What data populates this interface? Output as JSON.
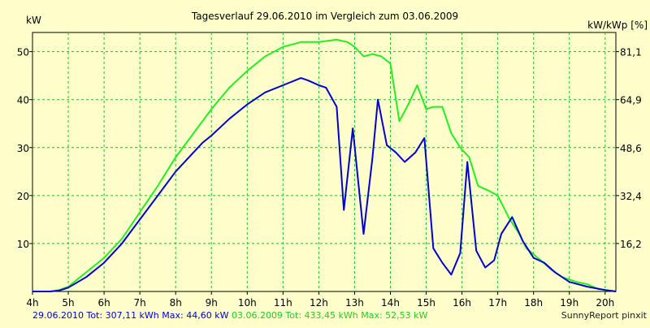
{
  "chart_data": {
    "type": "line",
    "title": "Tagesverlauf 29.06.2010 im Vergleich zum 03.06.2009",
    "ylabel_left": "kW",
    "ylabel_right": "kW/kWp [%]",
    "xlim": [
      4,
      20.3
    ],
    "ylim": [
      0,
      54
    ],
    "x_ticks": [
      {
        "v": 4,
        "label": "4h"
      },
      {
        "v": 5,
        "label": "5h"
      },
      {
        "v": 6,
        "label": "6h"
      },
      {
        "v": 7,
        "label": "7h"
      },
      {
        "v": 8,
        "label": "8h"
      },
      {
        "v": 9,
        "label": "9h"
      },
      {
        "v": 10,
        "label": "10h"
      },
      {
        "v": 11,
        "label": "11h"
      },
      {
        "v": 12,
        "label": "12h"
      },
      {
        "v": 13,
        "label": "13h"
      },
      {
        "v": 14,
        "label": "14h"
      },
      {
        "v": 15,
        "label": "15h"
      },
      {
        "v": 16,
        "label": "16h"
      },
      {
        "v": 17,
        "label": "17h"
      },
      {
        "v": 18,
        "label": "18h"
      },
      {
        "v": 19,
        "label": "19h"
      },
      {
        "v": 20,
        "label": "20h"
      }
    ],
    "y_ticks_left": [
      {
        "v": 10,
        "label": "10"
      },
      {
        "v": 20,
        "label": "20"
      },
      {
        "v": 30,
        "label": "30"
      },
      {
        "v": 40,
        "label": "40"
      },
      {
        "v": 50,
        "label": "50"
      }
    ],
    "y_ticks_right": [
      {
        "v": 10,
        "label": "16,2"
      },
      {
        "v": 20,
        "label": "32,4"
      },
      {
        "v": 30,
        "label": "48,6"
      },
      {
        "v": 40,
        "label": "64,9"
      },
      {
        "v": 50,
        "label": "81,1"
      }
    ],
    "grid": true,
    "series": [
      {
        "name": "29.06.2010",
        "color": "#0000cc",
        "points": [
          [
            4.0,
            0
          ],
          [
            4.5,
            0
          ],
          [
            4.75,
            0.2
          ],
          [
            5.0,
            0.8
          ],
          [
            5.5,
            3
          ],
          [
            6.0,
            6
          ],
          [
            6.5,
            10
          ],
          [
            7.0,
            15
          ],
          [
            7.5,
            20
          ],
          [
            8.0,
            25
          ],
          [
            8.5,
            29
          ],
          [
            8.75,
            31
          ],
          [
            9.0,
            32.5
          ],
          [
            9.5,
            36
          ],
          [
            10.0,
            39
          ],
          [
            10.5,
            41.5
          ],
          [
            11.0,
            43
          ],
          [
            11.5,
            44.5
          ],
          [
            11.7,
            44
          ],
          [
            12.0,
            43
          ],
          [
            12.2,
            42.5
          ],
          [
            12.5,
            38.5
          ],
          [
            12.7,
            17
          ],
          [
            12.95,
            34
          ],
          [
            13.25,
            12
          ],
          [
            13.5,
            28
          ],
          [
            13.65,
            40
          ],
          [
            13.9,
            30.5
          ],
          [
            14.15,
            29
          ],
          [
            14.4,
            27
          ],
          [
            14.7,
            29
          ],
          [
            14.95,
            32
          ],
          [
            15.2,
            9
          ],
          [
            15.45,
            6
          ],
          [
            15.7,
            3.5
          ],
          [
            15.95,
            8
          ],
          [
            16.15,
            27
          ],
          [
            16.4,
            8.5
          ],
          [
            16.65,
            5
          ],
          [
            16.9,
            6.5
          ],
          [
            17.1,
            12
          ],
          [
            17.4,
            15.5
          ],
          [
            17.7,
            10.5
          ],
          [
            18.0,
            7
          ],
          [
            18.3,
            6
          ],
          [
            18.6,
            4
          ],
          [
            19.0,
            2
          ],
          [
            19.5,
            1
          ],
          [
            20.0,
            0.3
          ],
          [
            20.3,
            0
          ]
        ]
      },
      {
        "name": "03.06.2009",
        "color": "#22ee22",
        "points": [
          [
            4.0,
            0
          ],
          [
            4.5,
            0
          ],
          [
            4.75,
            0.3
          ],
          [
            5.0,
            1
          ],
          [
            5.5,
            4
          ],
          [
            6.0,
            7
          ],
          [
            6.5,
            11
          ],
          [
            7.0,
            16.5
          ],
          [
            7.5,
            22
          ],
          [
            8.0,
            28
          ],
          [
            8.5,
            33
          ],
          [
            9.0,
            38
          ],
          [
            9.5,
            42.5
          ],
          [
            10.0,
            46
          ],
          [
            10.5,
            49
          ],
          [
            11.0,
            51
          ],
          [
            11.5,
            52
          ],
          [
            12.0,
            52
          ],
          [
            12.5,
            52.5
          ],
          [
            12.8,
            52
          ],
          [
            13.0,
            51
          ],
          [
            13.25,
            49
          ],
          [
            13.5,
            49.5
          ],
          [
            13.75,
            49
          ],
          [
            14.0,
            47.5
          ],
          [
            14.25,
            35.5
          ],
          [
            14.5,
            39
          ],
          [
            14.75,
            43
          ],
          [
            15.0,
            38
          ],
          [
            15.2,
            38.5
          ],
          [
            15.45,
            38.5
          ],
          [
            15.7,
            33
          ],
          [
            15.95,
            30
          ],
          [
            16.2,
            28
          ],
          [
            16.45,
            22
          ],
          [
            16.75,
            21
          ],
          [
            17.0,
            20
          ],
          [
            17.3,
            15.5
          ],
          [
            17.6,
            12
          ],
          [
            17.8,
            9
          ],
          [
            18.2,
            6.5
          ],
          [
            18.5,
            4.5
          ],
          [
            18.8,
            3
          ],
          [
            19.2,
            2
          ],
          [
            19.5,
            1.5
          ],
          [
            19.8,
            0.5
          ],
          [
            20.3,
            0
          ]
        ]
      }
    ],
    "footer": {
      "series1_label": "29.06.2010 Tot: 307,11 kWh Max: 44,60 kW",
      "series2_label": "03.06.2009 Tot: 433,45 kWh Max: 52,53 kW",
      "credit": "SunnyReport pinxit"
    }
  }
}
